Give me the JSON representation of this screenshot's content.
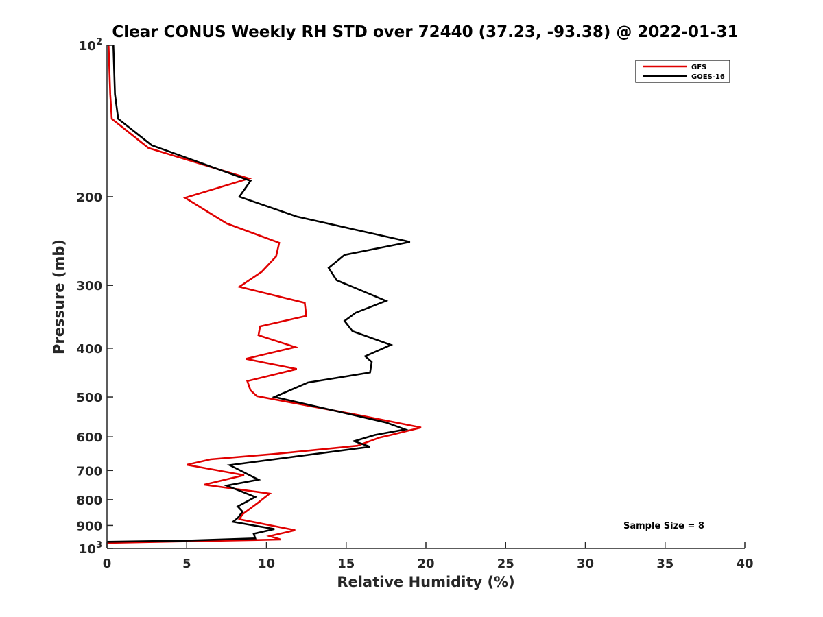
{
  "chart_data": {
    "type": "line",
    "title": "Clear CONUS Weekly RH STD over 72440 (37.23, -93.38) @ 2022-01-31",
    "xlabel": "Relative Humidity (%)",
    "ylabel": "Pressure (mb)",
    "xlim": [
      0,
      40
    ],
    "ylim": [
      100,
      1000
    ],
    "y_scale": "log",
    "y_reversed": true,
    "grid": false,
    "legend_position": "top-right",
    "x_ticks": [
      0,
      5,
      10,
      15,
      20,
      25,
      30,
      35,
      40
    ],
    "x_tick_labels": [
      "0",
      "5",
      "10",
      "15",
      "20",
      "25",
      "30",
      "35",
      "40"
    ],
    "y_ticks": [
      100,
      200,
      300,
      400,
      500,
      600,
      700,
      800,
      900,
      1000
    ],
    "y_tick_labels": [
      {
        "base": "10",
        "exp": "2"
      },
      {
        "base": "200",
        "exp": ""
      },
      {
        "base": "300",
        "exp": ""
      },
      {
        "base": "400",
        "exp": ""
      },
      {
        "base": "500",
        "exp": ""
      },
      {
        "base": "600",
        "exp": ""
      },
      {
        "base": "700",
        "exp": ""
      },
      {
        "base": "800",
        "exp": ""
      },
      {
        "base": "900",
        "exp": ""
      },
      {
        "base": "10",
        "exp": "3"
      }
    ],
    "annotation": "Sample Size = 8",
    "series": [
      {
        "name": "GFS",
        "color": "#e00000",
        "points": [
          [
            0.1,
            100
          ],
          [
            0.2,
            125
          ],
          [
            0.3,
            140
          ],
          [
            2.6,
            160
          ],
          [
            8.9,
            184
          ],
          [
            4.9,
            201
          ],
          [
            7.5,
            226
          ],
          [
            10.8,
            247
          ],
          [
            10.6,
            263
          ],
          [
            9.7,
            282
          ],
          [
            8.3,
            302
          ],
          [
            12.4,
            325
          ],
          [
            12.5,
            345
          ],
          [
            9.6,
            362
          ],
          [
            9.5,
            377
          ],
          [
            11.8,
            398
          ],
          [
            8.7,
            420
          ],
          [
            11.9,
            440
          ],
          [
            8.8,
            465
          ],
          [
            9.0,
            485
          ],
          [
            9.4,
            498
          ],
          [
            16.0,
            545
          ],
          [
            19.7,
            575
          ],
          [
            17.8,
            595
          ],
          [
            17.1,
            602
          ],
          [
            15.7,
            625
          ],
          [
            10.5,
            649
          ],
          [
            6.5,
            665
          ],
          [
            5.0,
            682
          ],
          [
            8.6,
            715
          ],
          [
            6.1,
            747
          ],
          [
            10.2,
            778
          ],
          [
            9.5,
            810
          ],
          [
            8.5,
            855
          ],
          [
            8.3,
            875
          ],
          [
            11.8,
            920
          ],
          [
            10.2,
            945
          ],
          [
            10.9,
            960
          ],
          [
            0.0,
            975
          ]
        ]
      },
      {
        "name": "GOES-16",
        "color": "#000000",
        "points": [
          [
            0.4,
            100
          ],
          [
            0.5,
            125
          ],
          [
            0.7,
            140
          ],
          [
            2.8,
            158
          ],
          [
            9.0,
            186
          ],
          [
            8.3,
            200
          ],
          [
            11.9,
            219
          ],
          [
            19.0,
            246
          ],
          [
            14.9,
            261
          ],
          [
            13.9,
            277
          ],
          [
            14.4,
            293
          ],
          [
            17.5,
            322
          ],
          [
            15.6,
            340
          ],
          [
            14.9,
            353
          ],
          [
            15.4,
            370
          ],
          [
            17.8,
            394
          ],
          [
            16.2,
            415
          ],
          [
            16.6,
            426
          ],
          [
            16.5,
            447
          ],
          [
            12.6,
            468
          ],
          [
            10.5,
            500
          ],
          [
            17.5,
            562
          ],
          [
            18.7,
            580
          ],
          [
            16.8,
            595
          ],
          [
            15.5,
            612
          ],
          [
            16.5,
            628
          ],
          [
            7.7,
            683
          ],
          [
            9.5,
            730
          ],
          [
            7.5,
            750
          ],
          [
            9.3,
            790
          ],
          [
            8.2,
            825
          ],
          [
            8.5,
            845
          ],
          [
            8.2,
            870
          ],
          [
            7.9,
            885
          ],
          [
            10.5,
            915
          ],
          [
            9.2,
            935
          ],
          [
            9.3,
            955
          ],
          [
            5.0,
            965
          ],
          [
            0.0,
            970
          ]
        ]
      }
    ]
  }
}
